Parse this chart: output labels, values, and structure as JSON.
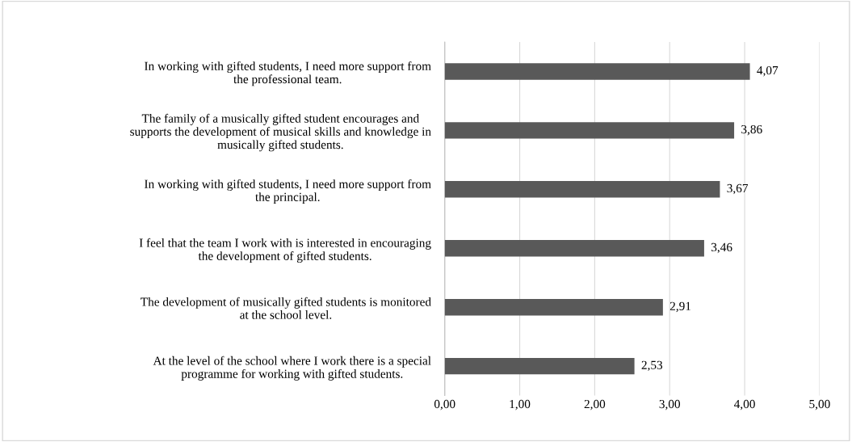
{
  "chart_data": {
    "type": "bar",
    "orientation": "horizontal",
    "categories": [
      "In working with gifted students, I need more support from\nthe professional team.",
      "The family of a musically gifted student encourages and\nsupports the development of musical skills and knowledge in\nmusically gifted students.",
      "In working with gifted students, I need more support from\nthe principal.",
      "I feel that the team I work with is interested in encouraging\nthe development of gifted students.",
      "The development of musically gifted students is monitored\nat the school level.",
      "At the level of the school where I work there is a special\nprogramme for working with gifted students."
    ],
    "values": [
      4.07,
      3.86,
      3.67,
      3.46,
      2.91,
      2.53
    ],
    "value_labels": [
      "4,07",
      "3,86",
      "3,67",
      "3,46",
      "2,91",
      "2,53"
    ],
    "color": "#595959",
    "xlim": [
      0,
      5
    ],
    "xticks": [
      {
        "value": 0,
        "label": "0,00"
      },
      {
        "value": 1,
        "label": "1,00"
      },
      {
        "value": 2,
        "label": "2,00"
      },
      {
        "value": 3,
        "label": "3,00"
      },
      {
        "value": 4,
        "label": "4,00"
      },
      {
        "value": 5,
        "label": "5,00"
      }
    ],
    "grid": "x"
  }
}
